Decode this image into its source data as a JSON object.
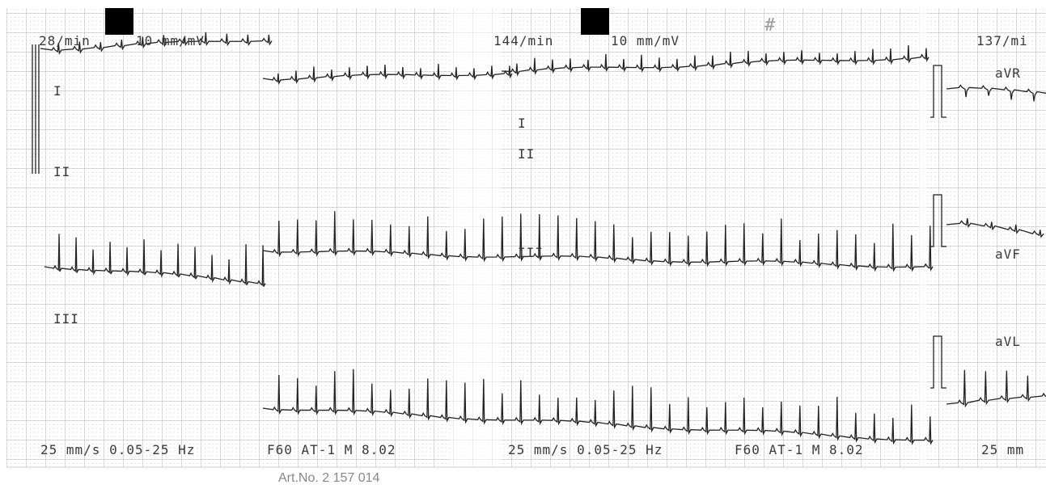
{
  "header": {
    "left": {
      "rate": "28/min",
      "gain": "10 mm/mV"
    },
    "middle": {
      "rate": "144/min",
      "gain": "10 mm/mV"
    },
    "right": {
      "rate": "137/mi"
    }
  },
  "mark": "#",
  "leads": {
    "left": [
      "I",
      "II",
      "III"
    ],
    "middle": [
      "I",
      "II",
      "III"
    ],
    "right": [
      "aVR",
      "aVF",
      "aVL"
    ]
  },
  "footer": {
    "left": {
      "speed": "25 mm/s 0.05-25 Hz",
      "settings": "F60 AT-1 M 8.02"
    },
    "middle": {
      "speed": "25 mm/s 0.05-25 Hz",
      "settings": "F60 AT-1 M 8.02"
    },
    "right": "25 mm"
  },
  "article": "Art.No. 2 157 014"
}
